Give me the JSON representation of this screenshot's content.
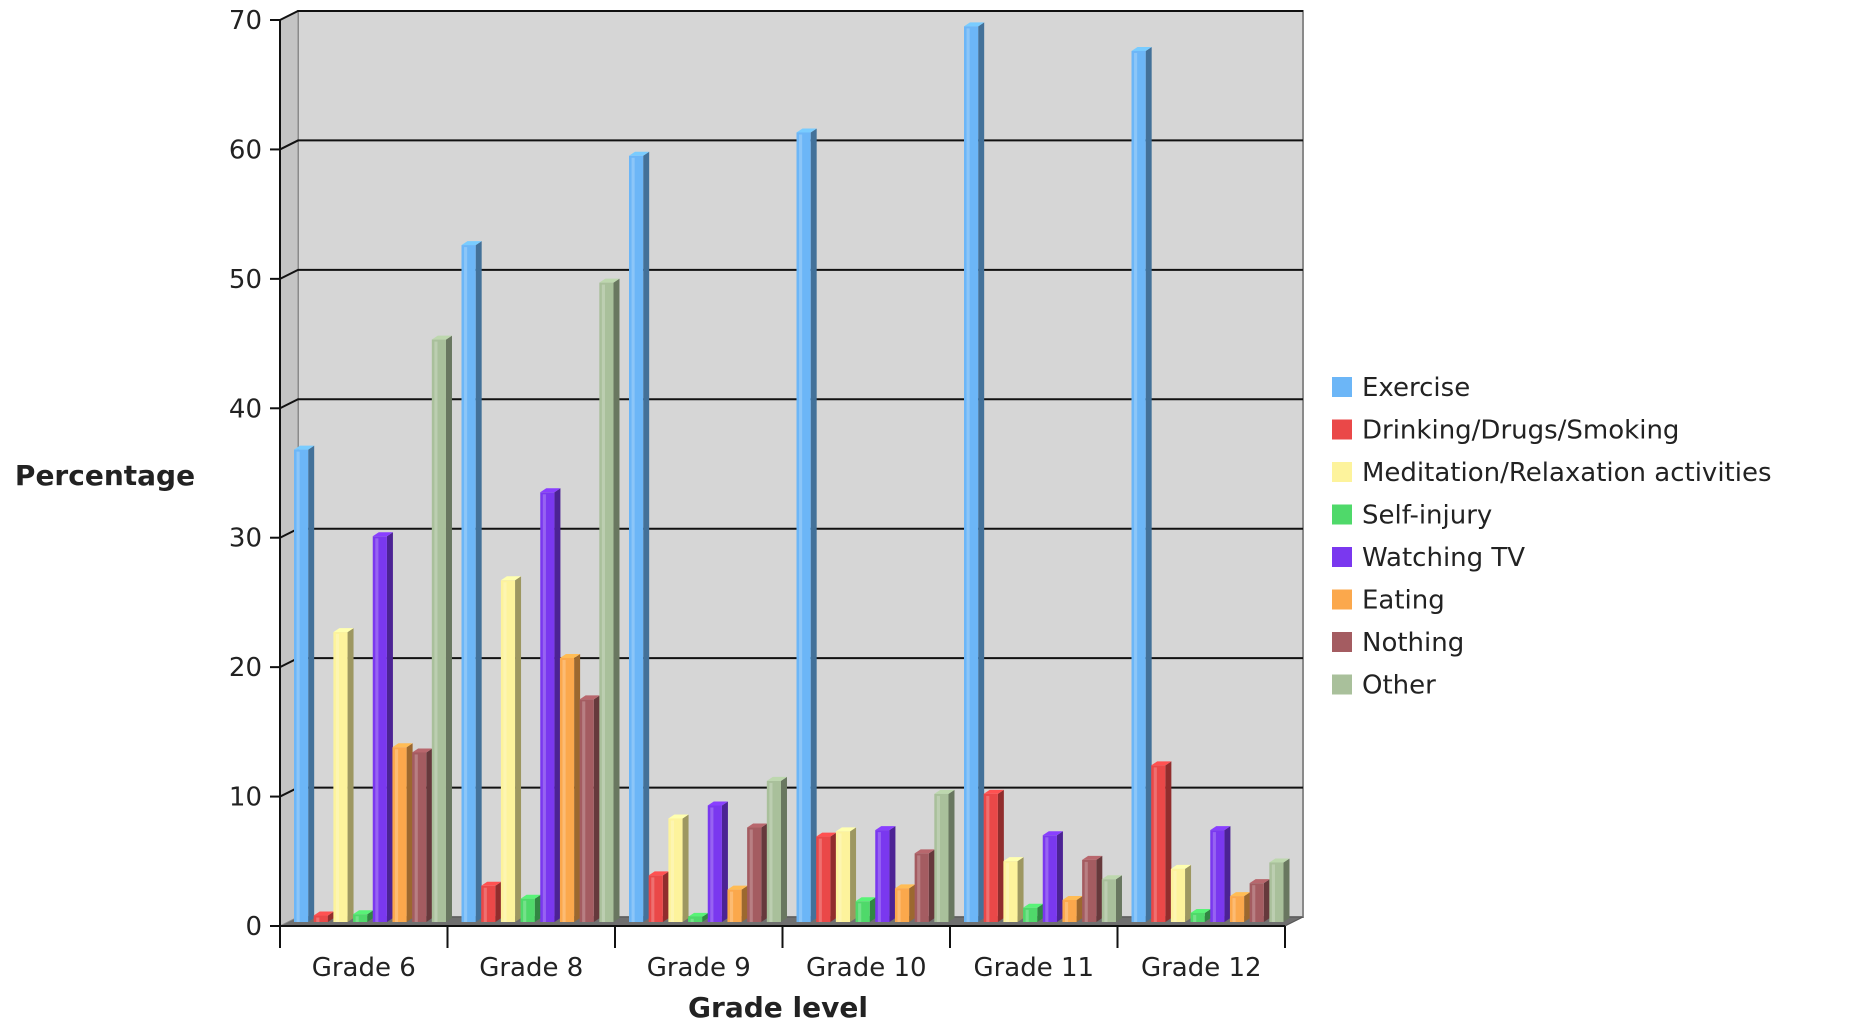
{
  "chart_data": {
    "type": "bar",
    "title": "",
    "xlabel": "Grade level",
    "ylabel": "Percentage",
    "ylim": [
      0,
      70
    ],
    "yticks": [
      0,
      10,
      20,
      30,
      40,
      50,
      60,
      70
    ],
    "grid": true,
    "legend_position": "right",
    "categories": [
      "Grade 6",
      "Grade 8",
      "Grade 9",
      "Grade 10",
      "Grade 11",
      "Grade 12"
    ],
    "series": [
      {
        "name": "Exercise",
        "color": "#6cb6f7",
        "values": [
          36.5,
          52.3,
          59.2,
          61.0,
          69.2,
          67.3
        ]
      },
      {
        "name": "Drinking/Drugs/Smoking",
        "color": "#ea4848",
        "values": [
          0.5,
          2.8,
          3.6,
          6.6,
          9.9,
          12.1
        ]
      },
      {
        "name": "Meditation/Relaxation activities",
        "color": "#fdf39c",
        "values": [
          22.4,
          26.4,
          8.0,
          7.0,
          4.7,
          4.1
        ]
      },
      {
        "name": "Self-injury",
        "color": "#4fd96a",
        "values": [
          0.6,
          1.8,
          0.4,
          1.6,
          1.1,
          0.7
        ]
      },
      {
        "name": "Watching TV",
        "color": "#7a38ef",
        "values": [
          29.8,
          33.2,
          9.0,
          7.1,
          6.7,
          7.1
        ]
      },
      {
        "name": "Eating",
        "color": "#fba84c",
        "values": [
          13.5,
          20.4,
          2.5,
          2.6,
          1.7,
          2.0
        ]
      },
      {
        "name": "Nothing",
        "color": "#a45c61",
        "values": [
          13.1,
          17.2,
          7.3,
          5.3,
          4.8,
          3.0
        ]
      },
      {
        "name": "Other",
        "color": "#a9c09b",
        "values": [
          45.0,
          49.4,
          10.9,
          9.9,
          3.3,
          4.6
        ]
      }
    ]
  }
}
